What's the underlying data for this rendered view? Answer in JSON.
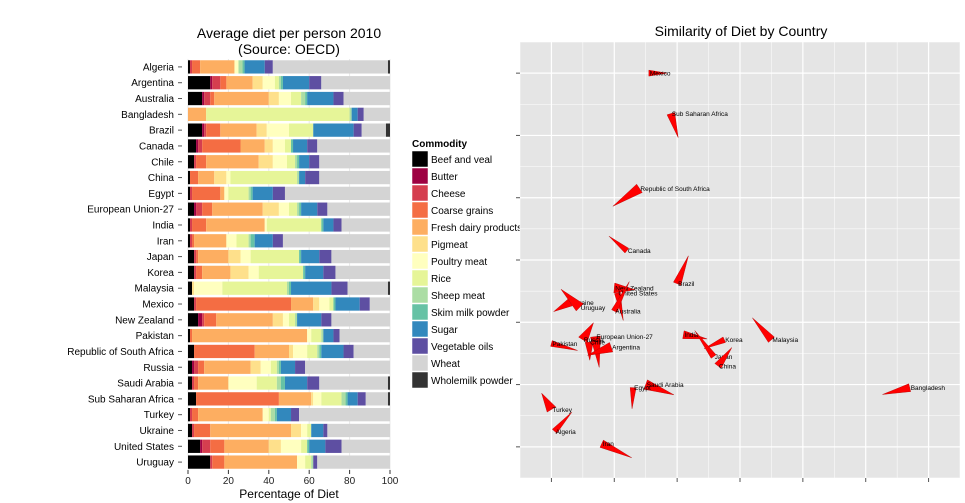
{
  "chart_data": [
    {
      "type": "bar",
      "stacked": true,
      "orientation": "horizontal",
      "title": "Average diet per person 2010\n(Source: OECD)",
      "xlabel": "Percentage of Diet",
      "ylabel": "",
      "xlim": [
        0,
        100
      ],
      "xticks": [
        "0",
        "20",
        "40",
        "60",
        "80",
        "100"
      ],
      "grid": true,
      "legend": {
        "title": "Commodity",
        "position": "right"
      },
      "categories": [
        "Algeria",
        "Argentina",
        "Australia",
        "Bangladesh",
        "Brazil",
        "Canada",
        "Chile",
        "China",
        "Egypt",
        "European Union-27",
        "India",
        "Iran",
        "Japan",
        "Korea",
        "Malaysia",
        "Mexico",
        "New Zealand",
        "Pakistan",
        "Republic of South Africa",
        "Russia",
        "Saudi Arabia",
        "Sub Saharan Africa",
        "Turkey",
        "Ukraine",
        "United States",
        "Uruguay"
      ],
      "series": [
        {
          "name": "Beef and veal",
          "color": "#000000",
          "values": [
            1,
            11,
            7,
            0,
            7,
            4,
            3,
            1,
            1,
            3,
            1,
            1,
            3,
            3,
            2,
            3,
            5,
            1,
            3,
            2,
            2,
            4,
            1,
            2,
            6,
            11
          ]
        },
        {
          "name": "Butter",
          "color": "#9e0142",
          "values": [
            0,
            1,
            1,
            0,
            1,
            1,
            0,
            0,
            0,
            1,
            0,
            0,
            0,
            0,
            0,
            0,
            2,
            0,
            0,
            1,
            0,
            0,
            0,
            0,
            1,
            0
          ]
        },
        {
          "name": "Cheese",
          "color": "#d53e4f",
          "values": [
            1,
            4,
            3,
            0,
            1,
            2,
            1,
            0,
            1,
            3,
            1,
            1,
            1,
            1,
            0,
            1,
            1,
            0,
            0,
            2,
            1,
            0,
            1,
            1,
            4,
            1
          ]
        },
        {
          "name": "Coarse grains",
          "color": "#f46d43",
          "values": [
            4,
            3,
            2,
            0,
            7,
            19,
            5,
            4,
            14,
            5,
            7,
            1,
            1,
            3,
            0,
            47,
            6,
            1,
            30,
            3,
            2,
            41,
            3,
            8,
            7,
            6
          ]
        },
        {
          "name": "Fresh dairy products",
          "color": "#fdae61",
          "values": [
            17,
            13,
            27,
            9,
            18,
            12,
            26,
            8,
            2,
            25,
            29,
            16,
            15,
            14,
            0,
            11,
            28,
            57,
            17,
            23,
            15,
            16,
            32,
            40,
            22,
            36
          ]
        },
        {
          "name": "Pigmeat",
          "color": "#fee08b",
          "values": [
            0,
            5,
            5,
            0,
            5,
            4,
            7,
            6,
            0,
            8,
            0,
            0,
            6,
            9,
            1,
            3,
            5,
            0,
            2,
            5,
            0,
            1,
            0,
            5,
            6,
            0
          ]
        },
        {
          "name": "Poultry meat",
          "color": "#ffffbf",
          "values": [
            2,
            6,
            6,
            0,
            11,
            6,
            7,
            2,
            2,
            5,
            1,
            5,
            5,
            5,
            14,
            5,
            3,
            2,
            7,
            5,
            14,
            4,
            3,
            3,
            10,
            4
          ]
        },
        {
          "name": "Rice",
          "color": "#e6f598",
          "values": [
            0,
            2,
            5,
            71,
            12,
            3,
            4,
            33,
            10,
            4,
            27,
            6,
            24,
            22,
            32,
            2,
            3,
            5,
            5,
            3,
            10,
            10,
            1,
            2,
            3,
            3
          ]
        },
        {
          "name": "Sheep meat",
          "color": "#abdda4",
          "values": [
            2,
            1,
            2,
            1,
            0,
            0,
            1,
            1,
            1,
            1,
            0,
            1,
            0,
            0,
            1,
            0,
            1,
            1,
            1,
            1,
            2,
            2,
            2,
            0,
            0,
            1
          ]
        },
        {
          "name": "Skim milk powder",
          "color": "#66c2a5",
          "values": [
            1,
            1,
            1,
            0,
            0,
            1,
            1,
            0,
            1,
            1,
            1,
            2,
            1,
            1,
            1,
            1,
            0,
            0,
            1,
            1,
            2,
            1,
            1,
            0,
            1,
            0
          ]
        },
        {
          "name": "Sugar",
          "color": "#3288bd",
          "values": [
            10,
            13,
            13,
            3,
            20,
            7,
            5,
            3,
            10,
            8,
            5,
            9,
            9,
            9,
            20,
            12,
            12,
            5,
            11,
            7,
            11,
            5,
            7,
            6,
            8,
            0
          ]
        },
        {
          "name": "Vegetable oils",
          "color": "#5e4fa2",
          "values": [
            4,
            6,
            5,
            3,
            4,
            5,
            5,
            7,
            6,
            5,
            4,
            5,
            6,
            6,
            8,
            5,
            5,
            3,
            5,
            5,
            6,
            4,
            4,
            2,
            8,
            2
          ]
        },
        {
          "name": "Wheat",
          "color": "#d4d4d4",
          "values": [
            57,
            34,
            23,
            13,
            12,
            36,
            35,
            35,
            52,
            31,
            24,
            53,
            29,
            27,
            20,
            10,
            29,
            25,
            18,
            42,
            34,
            11,
            45,
            31,
            24,
            36
          ]
        },
        {
          "name": "Wholemilk powder",
          "color": "#333333",
          "values": [
            1,
            0,
            0,
            0,
            2,
            0,
            0,
            0,
            0,
            0,
            0,
            0,
            0,
            0,
            1,
            0,
            0,
            0,
            0,
            0,
            1,
            1,
            0,
            0,
            0,
            0
          ]
        }
      ]
    },
    {
      "type": "scatter",
      "title": "Similarity of Diet by Country",
      "xlabel": "",
      "ylabel": "",
      "xlim": [
        -0.5,
        6.5
      ],
      "ylim": [
        -0.5,
        6.5
      ],
      "grid": true,
      "point_color": "#ff0000",
      "points": [
        {
          "label": "Mexico",
          "x": 1.55,
          "y": 6.0
        },
        {
          "label": "Sub Saharan Africa",
          "x": 1.9,
          "y": 5.35
        },
        {
          "label": "Republic of South Africa",
          "x": 1.4,
          "y": 4.15
        },
        {
          "label": "Canada",
          "x": 1.2,
          "y": 3.15
        },
        {
          "label": "Brazil",
          "x": 2.0,
          "y": 2.62
        },
        {
          "label": "New Zealand",
          "x": 1.0,
          "y": 2.55
        },
        {
          "label": "United States",
          "x": 1.05,
          "y": 2.47
        },
        {
          "label": "Ukraine",
          "x": 0.3,
          "y": 2.32
        },
        {
          "label": "Uruguay",
          "x": 0.45,
          "y": 2.24
        },
        {
          "label": "Australia",
          "x": 1.0,
          "y": 2.18
        },
        {
          "label": "India",
          "x": 2.1,
          "y": 1.8
        },
        {
          "label": "European Union-27",
          "x": 0.7,
          "y": 1.77
        },
        {
          "label": "Korea",
          "x": 2.75,
          "y": 1.72
        },
        {
          "label": "Malaysia",
          "x": 3.5,
          "y": 1.72
        },
        {
          "label": "Russia",
          "x": 0.5,
          "y": 1.72
        },
        {
          "label": "Pakistan",
          "x": 0.0,
          "y": 1.66
        },
        {
          "label": "Chile",
          "x": 0.6,
          "y": 1.68
        },
        {
          "label": "Argentina",
          "x": 0.95,
          "y": 1.6
        },
        {
          "label": "Japan",
          "x": 2.58,
          "y": 1.45
        },
        {
          "label": "China",
          "x": 2.65,
          "y": 1.3
        },
        {
          "label": "Saudi Arabia",
          "x": 1.5,
          "y": 1.0
        },
        {
          "label": "Egypt",
          "x": 1.3,
          "y": 0.95
        },
        {
          "label": "Bangladesh",
          "x": 5.7,
          "y": 0.95
        },
        {
          "label": "Turkey",
          "x": 0.0,
          "y": 0.6
        },
        {
          "label": "Algeria",
          "x": 0.05,
          "y": 0.25
        },
        {
          "label": "Iran",
          "x": 0.8,
          "y": 0.05
        }
      ]
    }
  ]
}
